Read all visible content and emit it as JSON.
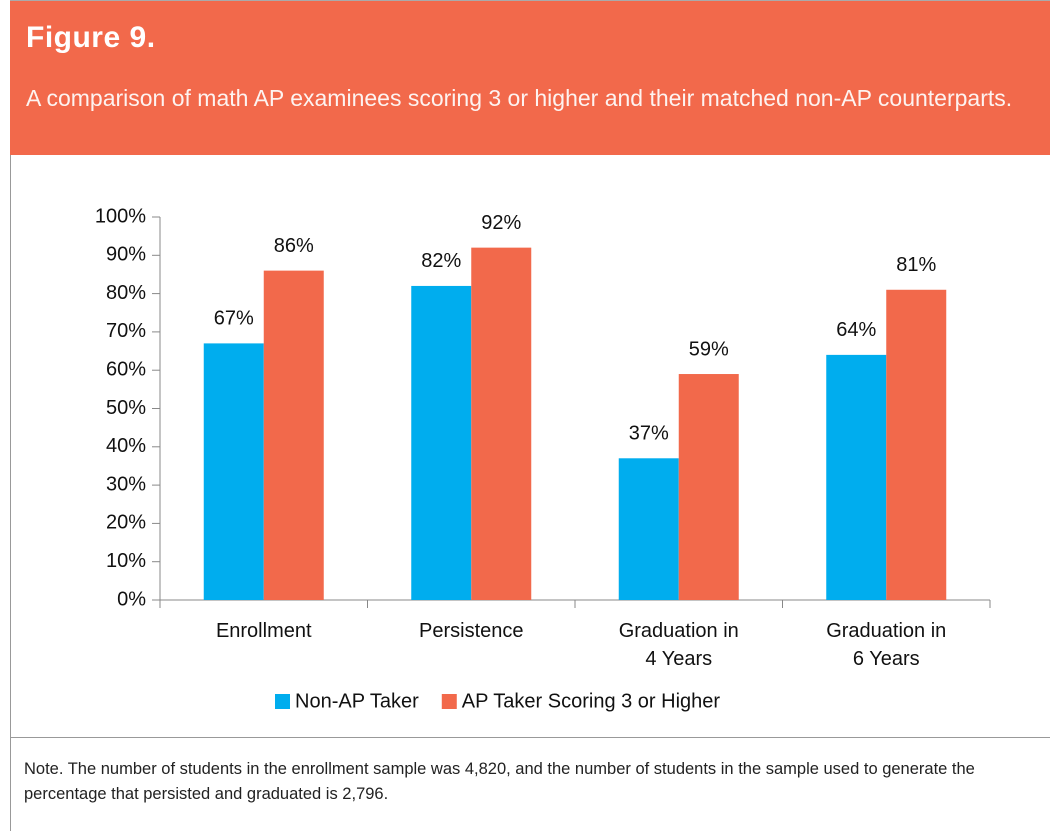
{
  "chart_data": {
    "type": "bar",
    "title": "Figure 9.",
    "subtitle": "A comparison of math AP examinees scoring 3 or higher and their matched non-AP counterparts.",
    "categories": [
      "Enrollment",
      "Persistence",
      "Graduation in\n4 Years",
      "Graduation in\n6 Years"
    ],
    "series": [
      {
        "name": "Non-AP Taker",
        "color": "#00adee",
        "values": [
          67,
          82,
          37,
          64
        ],
        "value_labels": [
          "67%",
          "82%",
          "37%",
          "64%"
        ]
      },
      {
        "name": "AP Taker Scoring 3 or Higher",
        "color": "#f2694b",
        "values": [
          86,
          92,
          59,
          81
        ],
        "value_labels": [
          "86%",
          "92%",
          "59%",
          "81%"
        ]
      }
    ],
    "ylim": [
      0,
      100
    ],
    "yticks": [
      {
        "value": 0,
        "label": "0%"
      },
      {
        "value": 10,
        "label": "10%"
      },
      {
        "value": 20,
        "label": "20%"
      },
      {
        "value": 30,
        "label": "30%"
      },
      {
        "value": 40,
        "label": "40%"
      },
      {
        "value": 50,
        "label": "50%"
      },
      {
        "value": 60,
        "label": "60%"
      },
      {
        "value": 70,
        "label": "70%"
      },
      {
        "value": 80,
        "label": "80%"
      },
      {
        "value": 90,
        "label": "90%"
      },
      {
        "value": 100,
        "label": "100%"
      }
    ],
    "grid": false,
    "legend": "bottom",
    "note": "Note. The number of students in the enrollment sample was 4,820, and the number of students in the sample used to generate the percentage that persisted and graduated is 2,796."
  }
}
